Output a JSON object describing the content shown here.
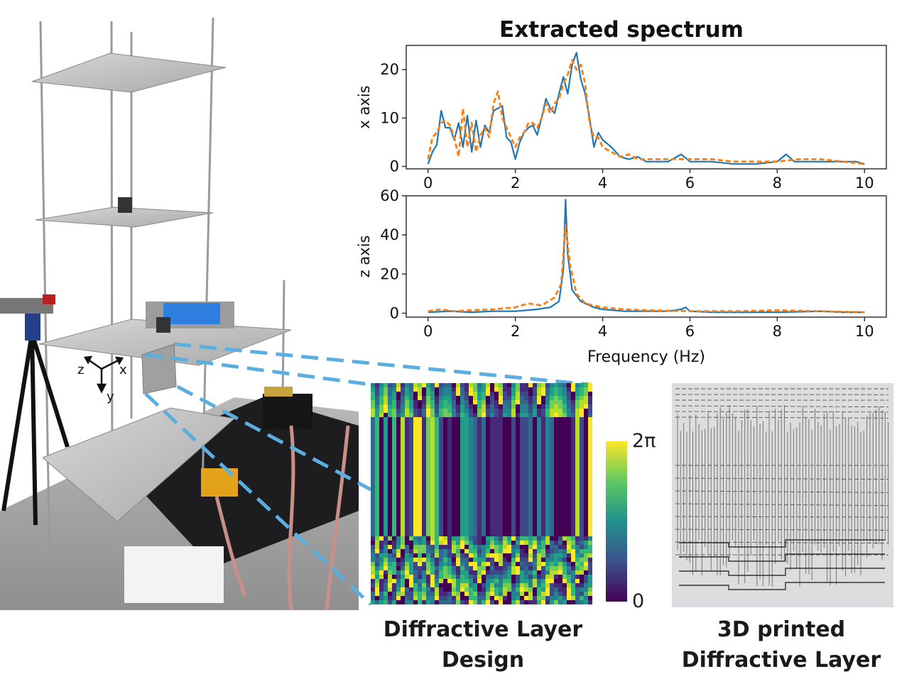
{
  "chart_data": [
    {
      "type": "line",
      "title": "Extracted spectrum",
      "xlabel": "",
      "ylabel": "x axis",
      "xlim": [
        -0.5,
        10.5
      ],
      "ylim": [
        -0.5,
        25
      ],
      "xticks": [
        "0",
        "2",
        "4",
        "6",
        "8",
        "10"
      ],
      "yticks": [
        "0",
        "10",
        "20"
      ],
      "grid": false,
      "series": [
        {
          "color": "#1f77b4",
          "style": "solid",
          "x": [
            0,
            0.1,
            0.2,
            0.3,
            0.4,
            0.5,
            0.6,
            0.7,
            0.8,
            0.9,
            1.0,
            1.1,
            1.2,
            1.3,
            1.4,
            1.5,
            1.6,
            1.7,
            1.8,
            1.9,
            2.0,
            2.1,
            2.2,
            2.3,
            2.4,
            2.5,
            2.6,
            2.7,
            2.8,
            2.9,
            3.0,
            3.1,
            3.2,
            3.3,
            3.4,
            3.5,
            3.6,
            3.7,
            3.8,
            3.9,
            4.0,
            4.2,
            4.4,
            4.6,
            4.8,
            5.0,
            5.5,
            5.8,
            6.0,
            6.5,
            7.0,
            7.5,
            8.0,
            8.2,
            8.4,
            8.8,
            9.0,
            9.5,
            9.8,
            10.0
          ],
          "values": [
            0.5,
            3,
            4.5,
            11.5,
            8,
            8,
            5.5,
            9,
            4,
            10.5,
            3,
            9.5,
            4,
            8.5,
            7,
            11.5,
            12,
            12.5,
            6,
            5,
            1.5,
            5,
            7,
            8,
            8.5,
            6.5,
            10,
            14,
            12,
            11,
            15,
            18.5,
            15,
            21,
            23.5,
            18,
            15,
            10,
            4,
            7,
            5.5,
            4,
            2,
            1.5,
            2,
            1,
            1,
            2.5,
            1,
            1,
            0.5,
            0.5,
            1,
            2.5,
            1,
            1,
            1,
            1,
            1,
            0.5
          ]
        },
        {
          "color": "#ff7f0e",
          "style": "dashed",
          "x": [
            0,
            0.1,
            0.2,
            0.3,
            0.4,
            0.5,
            0.6,
            0.7,
            0.8,
            0.9,
            1.0,
            1.1,
            1.2,
            1.3,
            1.4,
            1.5,
            1.6,
            1.7,
            1.8,
            1.9,
            2.0,
            2.1,
            2.2,
            2.3,
            2.4,
            2.5,
            2.6,
            2.7,
            2.8,
            2.9,
            3.0,
            3.1,
            3.2,
            3.3,
            3.4,
            3.5,
            3.6,
            3.7,
            3.8,
            3.9,
            4.0,
            4.2,
            4.4,
            4.6,
            4.8,
            5.0,
            5.5,
            6.0,
            6.5,
            7.0,
            7.5,
            8.0,
            8.5,
            9.0,
            9.5,
            10.0
          ],
          "values": [
            1.5,
            6,
            7,
            9,
            9.5,
            8.5,
            6,
            2,
            12,
            4,
            9,
            3,
            6.5,
            8,
            6,
            13,
            15.5,
            10,
            8,
            6,
            4,
            6,
            7,
            9,
            9,
            8,
            10,
            13,
            11,
            13,
            14,
            17,
            19,
            22,
            20,
            21,
            17,
            9,
            6,
            6,
            4,
            3,
            2,
            2.5,
            1.5,
            1.5,
            1.5,
            1.5,
            1.5,
            1,
            1,
            1,
            1.5,
            1.5,
            1,
            0.5
          ]
        }
      ]
    },
    {
      "type": "line",
      "title": "",
      "xlabel": "Frequency (Hz)",
      "ylabel": "z axis",
      "xlim": [
        -0.5,
        10.5
      ],
      "ylim": [
        -2,
        60
      ],
      "xticks": [
        "0",
        "2",
        "4",
        "6",
        "8",
        "10"
      ],
      "yticks": [
        "0",
        "20",
        "40",
        "60"
      ],
      "grid": false,
      "series": [
        {
          "color": "#1f77b4",
          "style": "solid",
          "x": [
            0,
            0.5,
            1.0,
            1.5,
            2.0,
            2.5,
            2.8,
            3.0,
            3.1,
            3.15,
            3.2,
            3.3,
            3.5,
            3.8,
            4.0,
            4.5,
            5.0,
            5.5,
            5.8,
            5.9,
            6.0,
            6.5,
            7.0,
            8.0,
            9.0,
            9.5,
            10.0
          ],
          "values": [
            0.5,
            1,
            0.5,
            1,
            1,
            2,
            3,
            6,
            22,
            58,
            30,
            12,
            6,
            3,
            2,
            1,
            1,
            1,
            2,
            3,
            1,
            0.5,
            0.5,
            0.5,
            1,
            0.5,
            0.5
          ]
        },
        {
          "color": "#ff7f0e",
          "style": "dashed",
          "x": [
            0,
            0.3,
            0.6,
            1.0,
            1.5,
            2.0,
            2.3,
            2.6,
            2.9,
            3.05,
            3.15,
            3.25,
            3.4,
            3.6,
            3.8,
            4.0,
            4.5,
            5.0,
            6.0,
            7.0,
            8.0,
            9.0,
            10.0
          ],
          "values": [
            1,
            2,
            1,
            1.5,
            2,
            3,
            5,
            4,
            8,
            15,
            45,
            25,
            10,
            5,
            4,
            3,
            2,
            1.5,
            1,
            1,
            1.5,
            1,
            0.5
          ]
        }
      ]
    }
  ],
  "colorbar": {
    "max_label": "2π",
    "min_label": "0"
  },
  "captions": {
    "design": [
      "Diffractive Layer",
      "Design"
    ],
    "printed": [
      "3D printed",
      "Diffractive Layer"
    ]
  },
  "photo": {
    "axes": [
      "z",
      "x",
      "y"
    ]
  },
  "colors": {
    "accent_blue": "#5aaee0",
    "series1": "#1f77b4",
    "series2": "#ff7f0e"
  }
}
